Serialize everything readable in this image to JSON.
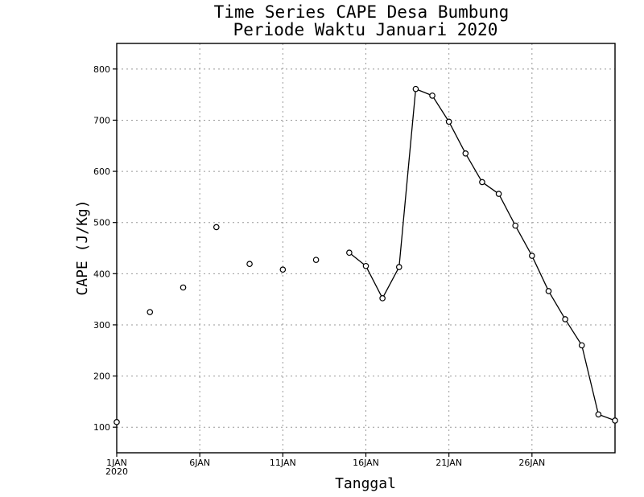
{
  "chart_data": {
    "type": "line",
    "title": "Time Series CAPE Desa Bumbung",
    "subtitle": "Periode Waktu Januari 2020",
    "xlabel": "Tanggal",
    "ylabel": "CAPE (J/Kg)",
    "xlim": [
      1,
      31
    ],
    "ylim": [
      50,
      850
    ],
    "grid": true,
    "x_ticks": [
      {
        "x": 1,
        "label": "1JAN",
        "sub": "2020"
      },
      {
        "x": 6,
        "label": "6JAN"
      },
      {
        "x": 11,
        "label": "11JAN"
      },
      {
        "x": 16,
        "label": "16JAN"
      },
      {
        "x": 21,
        "label": "21JAN"
      },
      {
        "x": 26,
        "label": "26JAN"
      }
    ],
    "y_ticks": [
      100,
      200,
      300,
      400,
      500,
      600,
      700,
      800
    ],
    "series": [
      {
        "points": [
          {
            "day": 1,
            "value": 110
          },
          {
            "day": 3,
            "value": 325
          },
          {
            "day": 5,
            "value": 373
          },
          {
            "day": 7,
            "value": 491
          },
          {
            "day": 9,
            "value": 419
          },
          {
            "day": 11,
            "value": 408
          },
          {
            "day": 13,
            "value": 427
          },
          {
            "day": 15,
            "value": 441
          },
          {
            "day": 16,
            "value": 415
          },
          {
            "day": 17,
            "value": 352
          },
          {
            "day": 18,
            "value": 413
          },
          {
            "day": 19,
            "value": 761
          },
          {
            "day": 20,
            "value": 748
          },
          {
            "day": 21,
            "value": 697
          },
          {
            "day": 22,
            "value": 635
          },
          {
            "day": 23,
            "value": 579
          },
          {
            "day": 24,
            "value": 556
          },
          {
            "day": 25,
            "value": 494
          },
          {
            "day": 26,
            "value": 435
          },
          {
            "day": 27,
            "value": 366
          },
          {
            "day": 28,
            "value": 311
          },
          {
            "day": 29,
            "value": 260
          },
          {
            "day": 30,
            "value": 125
          },
          {
            "day": 31,
            "value": 113
          }
        ]
      }
    ]
  }
}
